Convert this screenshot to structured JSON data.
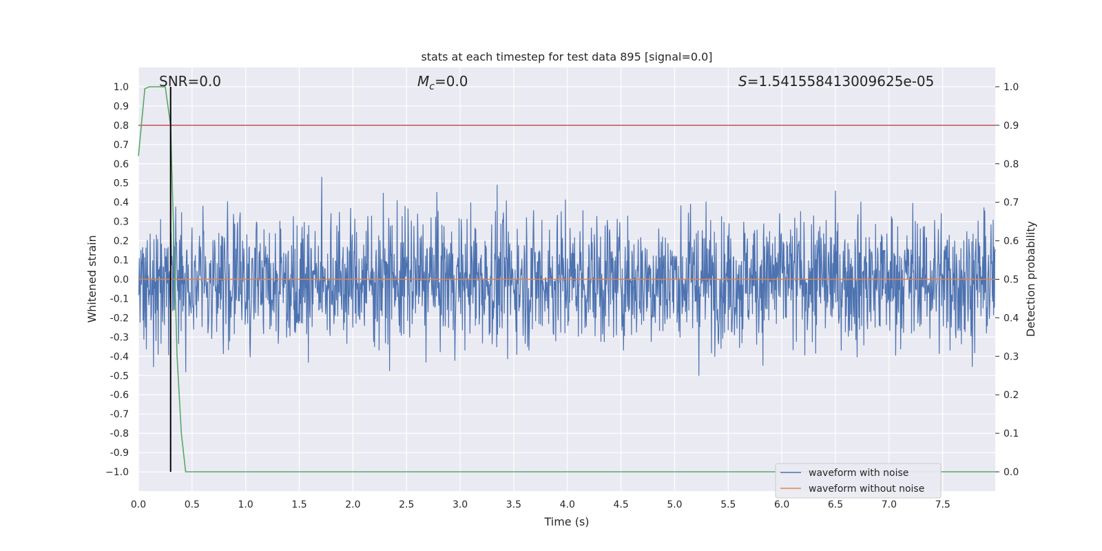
{
  "chart_data": {
    "type": "line",
    "title": "stats at each timestep for test data 895 [signal=0.0]",
    "xlabel": "Time (s)",
    "ylabel": "Whitened strain",
    "y2label": "Detection probability",
    "xlim": [
      0.0,
      7.99
    ],
    "ylim": [
      -1.1,
      1.1
    ],
    "y2lim": [
      -0.05,
      1.05
    ],
    "x_ticks": [
      "0.0",
      "0.5",
      "1.0",
      "1.5",
      "2.0",
      "2.5",
      "3.0",
      "3.5",
      "4.0",
      "4.5",
      "5.0",
      "5.5",
      "6.0",
      "6.5",
      "7.0",
      "7.5"
    ],
    "y_ticks": [
      "1.0",
      "0.9",
      "0.8",
      "0.7",
      "0.6",
      "0.5",
      "0.4",
      "0.3",
      "0.2",
      "0.1",
      "0.0",
      "-0.1",
      "-0.2",
      "-0.3",
      "-0.4",
      "-0.5",
      "-0.6",
      "-0.7",
      "-0.8",
      "-0.9",
      "−1.0"
    ],
    "y2_ticks": [
      "1.0",
      "0.9",
      "0.8",
      "0.7",
      "0.6",
      "0.5",
      "0.4",
      "0.3",
      "0.2",
      "0.1",
      "0.0"
    ],
    "grid": true,
    "legend_placement": "lower-right",
    "annotations": {
      "snr": "SNR=0.0",
      "mc_symbol": "M",
      "mc_sub": "c",
      "mc_value": "=0.0",
      "s_symbol": "S",
      "s_value": "=1.541558413009625e-05"
    },
    "series": [
      {
        "name": "waveform with noise",
        "color": "#4c72b0",
        "kind": "noise",
        "samples": 2048,
        "amplitude_range": [
          -0.95,
          1.0
        ]
      },
      {
        "name": "waveform without noise",
        "color": "#dd8452",
        "y": 0.0
      },
      {
        "color": "#55a868",
        "axis": "y2",
        "x": [
          0.0,
          0.06,
          0.1,
          0.15,
          0.2,
          0.25,
          0.3,
          0.33,
          0.36,
          0.4,
          0.44,
          7.99
        ],
        "y": [
          0.82,
          0.995,
          1.0,
          1.0,
          1.0,
          1.0,
          0.9,
          0.6,
          0.3,
          0.1,
          0.0,
          0.0
        ]
      },
      {
        "color": "#c44e52",
        "axis": "y2",
        "y": 0.9
      },
      {
        "color": "#000000",
        "kind": "vline",
        "x": 0.3,
        "y_range": [
          0.0,
          1.0
        ],
        "axis": "y2"
      }
    ]
  }
}
